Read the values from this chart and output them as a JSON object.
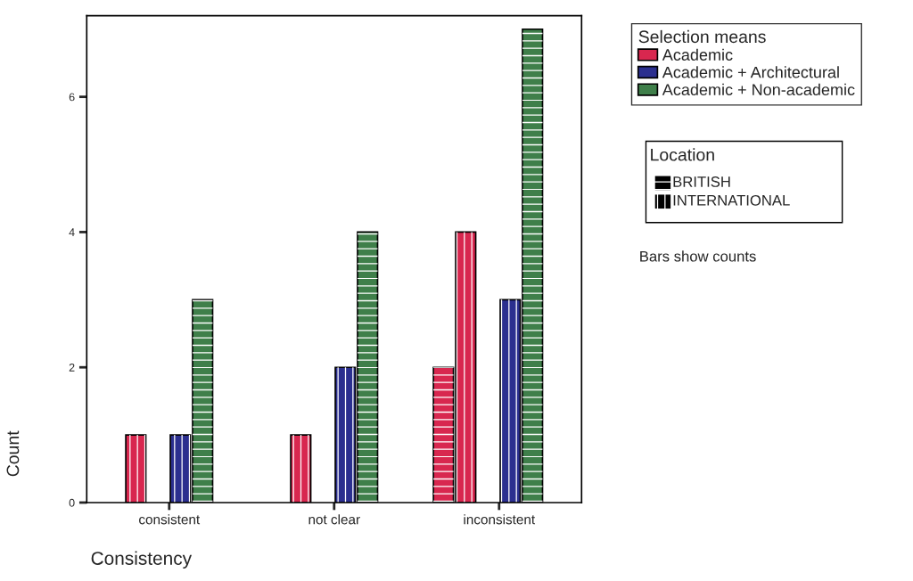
{
  "chart_data": {
    "type": "bar",
    "xlabel": "Consistency",
    "ylabel": "Count",
    "categories": [
      "consistent",
      "not clear",
      "inconsistent"
    ],
    "series": [
      {
        "color": "#d8274f",
        "values": [
          null,
          null,
          2
        ]
      },
      {
        "name": "Academic",
        "color": "#d8274f",
        "values": [
          1,
          1,
          4
        ]
      },
      {
        "values": [
          null,
          null,
          null
        ]
      },
      {
        "name": "Academic + Architectural",
        "color": "#2b2f8f",
        "values": [
          1,
          2,
          3
        ]
      },
      {
        "name": "Academic + Non-academic",
        "color": "#3f7f4a",
        "values": [
          3,
          4,
          7
        ]
      },
      {
        "values": [
          null,
          null,
          null
        ]
      }
    ],
    "legend_title": "Selection means",
    "legend": "top right",
    "ylim": [
      0,
      7.2
    ],
    "yticks": [
      0,
      2,
      4,
      6
    ],
    "grid": false,
    "annotations": [
      "Location",
      "BRITISH",
      "INTERNATIONAL",
      "Bars show counts"
    ]
  }
}
